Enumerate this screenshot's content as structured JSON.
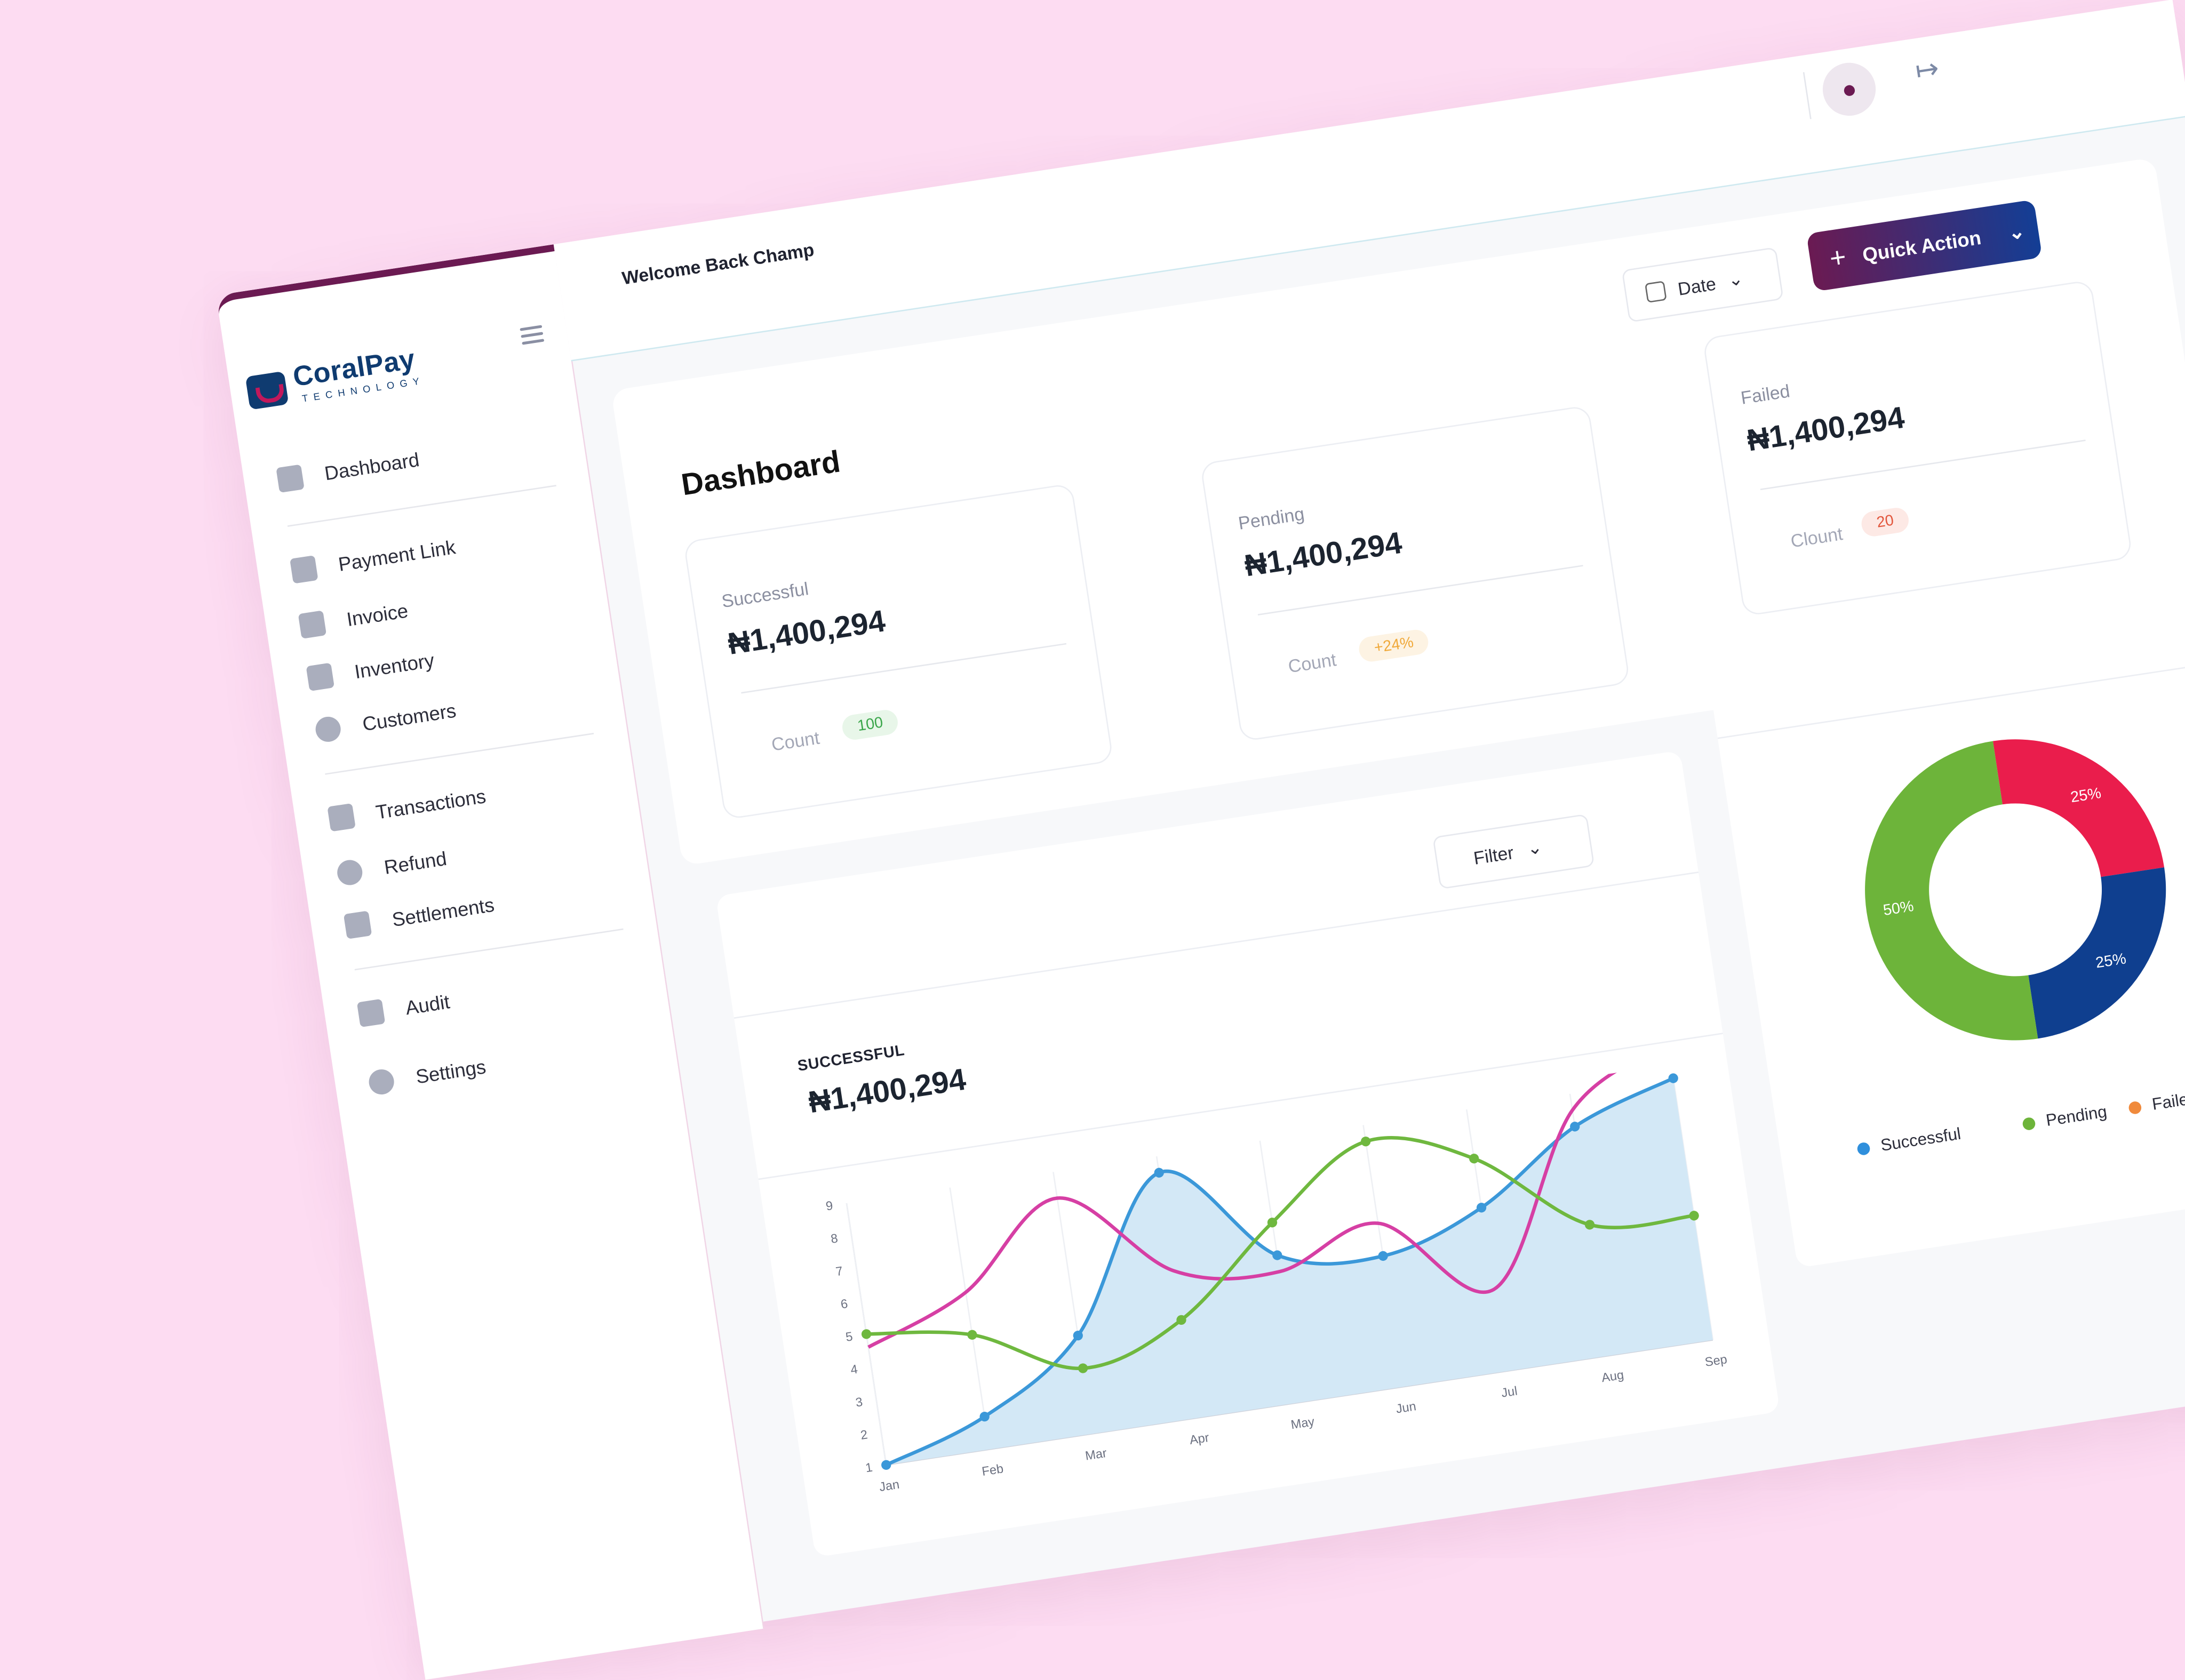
{
  "brand": {
    "name": "CoralPay",
    "tagline": "TECHNOLOGY"
  },
  "sidebar": {
    "items": [
      {
        "label": "Dashboard",
        "icon": "grid-icon"
      },
      {
        "label": "Payment Link",
        "icon": "link-card-icon"
      },
      {
        "label": "Invoice",
        "icon": "invoice-icon"
      },
      {
        "label": "Inventory",
        "icon": "inventory-icon"
      },
      {
        "label": "Customers",
        "icon": "users-icon"
      },
      {
        "label": "Transactions",
        "icon": "list-icon"
      },
      {
        "label": "Refund",
        "icon": "refund-icon"
      },
      {
        "label": "Settlements",
        "icon": "settlements-icon"
      },
      {
        "label": "Audit",
        "icon": "document-icon"
      },
      {
        "label": "Settings",
        "icon": "gear-icon"
      }
    ]
  },
  "header": {
    "welcome": "Welcome Back Champ"
  },
  "dashboard": {
    "title": "Dashboard",
    "date_label": "Date",
    "quick_action_label": "Quick Action",
    "cards": [
      {
        "label": "Successful",
        "amount": "₦1,400,294",
        "count_label": "Count",
        "badge": "100",
        "badge_color": "#3aa64a",
        "badge_bg": "#e8f6e9"
      },
      {
        "label": "Pending",
        "amount": "₦1,400,294",
        "count_label": "Count",
        "badge": "+24%",
        "badge_color": "#f0a93a",
        "badge_bg": "#fdf3e3"
      },
      {
        "label": "Failed",
        "amount": "₦1,400,294",
        "count_label": "Clount",
        "badge": "20",
        "badge_color": "#e2553b",
        "badge_bg": "#fde9e5"
      }
    ]
  },
  "chart_panel": {
    "filter_label": "Filter",
    "label": "SUCCESSFUL",
    "amount": "₦1,400,294"
  },
  "chart_data": [
    {
      "type": "line",
      "categories": [
        "Jan",
        "Feb",
        "Mar",
        "Apr",
        "May",
        "Jun",
        "Jul",
        "Aug",
        "Sep"
      ],
      "y_ticks": [
        1,
        2,
        3,
        4,
        5,
        6,
        7,
        8,
        9
      ],
      "ylim": [
        1,
        9
      ],
      "series": [
        {
          "values": [
            1,
            2,
            4,
            8.5,
            5.5,
            5,
            6,
            8,
            9
          ],
          "color": "#3b98d9",
          "filled": true
        },
        {
          "values": [
            4.6,
            5.8,
            8.2,
            5.5,
            5,
            6,
            3.5,
            8.5,
            10.5
          ],
          "color": "#d63fa4"
        },
        {
          "values": [
            5,
            4.5,
            3,
            4,
            6.5,
            8.5,
            7.5,
            5,
            4.8
          ],
          "color": "#6fb83f"
        }
      ]
    },
    {
      "type": "pie",
      "categories": [
        "Failed",
        "Pending",
        "Successful"
      ],
      "values": [
        25,
        25,
        50
      ],
      "slice_labels": [
        "25%",
        "25%",
        "50%"
      ],
      "colors": [
        "#ea1d4c",
        "#0f3f8f",
        "#6db43a"
      ],
      "legend": [
        {
          "label": "Successful",
          "color": "#2f8fdc"
        },
        {
          "label": "Pending",
          "color": "#6db43a"
        },
        {
          "label": "Failed",
          "color": "#f08a3c"
        }
      ]
    }
  ]
}
